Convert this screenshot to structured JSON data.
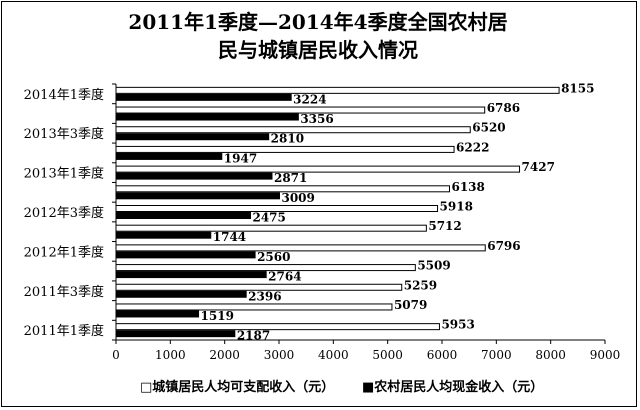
{
  "chart_data": {
    "type": "bar",
    "orientation": "horizontal",
    "title": "2011年1季度—2014年4季度全国农村居民与城镇居民收入情况",
    "title_lines": [
      "2011年1季度—2014年4季度全国农村居",
      "民与城镇居民收入情况"
    ],
    "categories": [
      "2011年1季度",
      "",
      "2011年3季度",
      "",
      "2012年1季度",
      "",
      "2012年3季度",
      "",
      "2013年1季度",
      "",
      "2013年3季度",
      "",
      "2014年1季度"
    ],
    "series": [
      {
        "name": "城镇居民人均可支配收入（元）",
        "color": "#ffffff",
        "values": [
          5953,
          5079,
          5259,
          5509,
          6796,
          5712,
          5918,
          6138,
          7427,
          6222,
          6520,
          6786,
          8155
        ]
      },
      {
        "name": "农村居民人均现金收入（元）",
        "color": "#000000",
        "values": [
          2187,
          1519,
          2396,
          2764,
          2560,
          1744,
          2475,
          3009,
          2871,
          1947,
          2810,
          3356,
          3224
        ]
      }
    ],
    "xlim": [
      0,
      9000
    ],
    "xticks": [
      0,
      1000,
      2000,
      3000,
      4000,
      5000,
      6000,
      7000,
      8000,
      9000
    ],
    "grid": false,
    "legend_position": "bottom"
  },
  "legend": {
    "urban": "□城镇居民人均可支配收入（元）",
    "rural": "■农村居民人均现金收入（元）"
  }
}
